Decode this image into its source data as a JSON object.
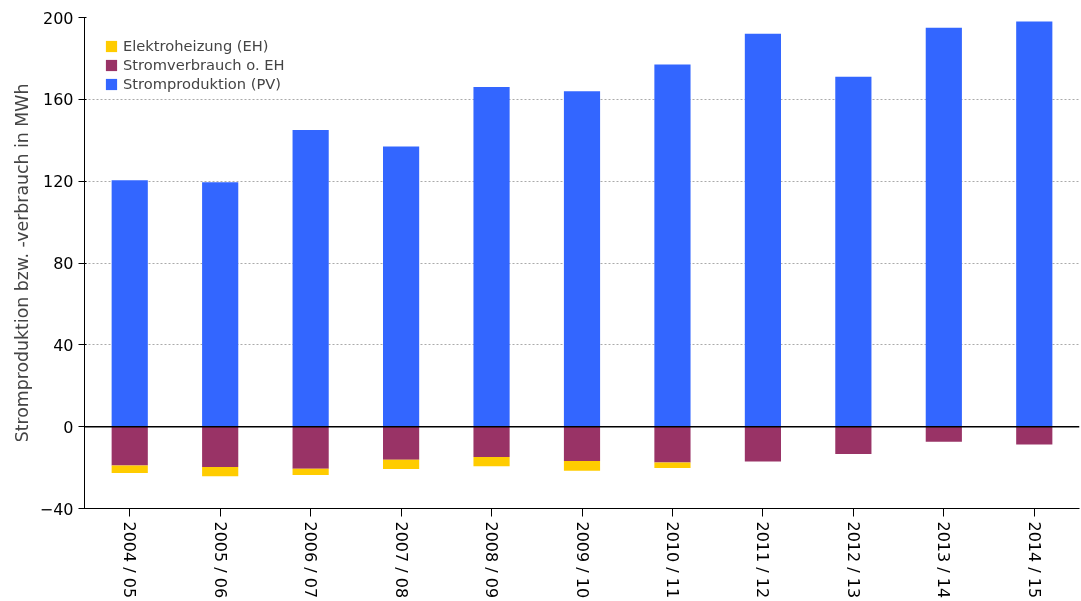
{
  "chart_data": {
    "type": "bar",
    "stacked": true,
    "ylabel": "Stromproduktion bzw. -verbrauch in MWh",
    "categories": [
      "2004 / 05",
      "2005 / 06",
      "2006 / 07",
      "2007 / 08",
      "2008 / 09",
      "2009 / 10",
      "2010 / 11",
      "2011 / 12",
      "2012 / 13",
      "2013 / 14",
      "2014 / 15"
    ],
    "series": [
      {
        "name": "Stromproduktion (PV)",
        "color": "#3366ff",
        "values": [
          120.5,
          119.5,
          145,
          137,
          166,
          164,
          177,
          192,
          171,
          195,
          198
        ]
      },
      {
        "name": "Stromverbrauch o. EH",
        "color": "#993366",
        "values": [
          -19,
          -19.7,
          -20.6,
          -16.2,
          -14.8,
          -16.8,
          -17.5,
          -17,
          -13.3,
          -7.4,
          -8.7
        ]
      },
      {
        "name": "Elektroheizung (EH)",
        "color": "#ffcc00",
        "values": [
          -3.6,
          -4.5,
          -3,
          -4.5,
          -4.5,
          -4.8,
          -2.7,
          null,
          null,
          null,
          null
        ]
      }
    ],
    "ylim": [
      -40,
      200
    ],
    "yticks": [
      -40,
      0,
      40,
      80,
      120,
      160,
      200
    ],
    "grid": "y",
    "legend": "top left",
    "ref_lines": [
      {
        "axis": "y",
        "value": 0,
        "color": "#000000"
      }
    ]
  }
}
